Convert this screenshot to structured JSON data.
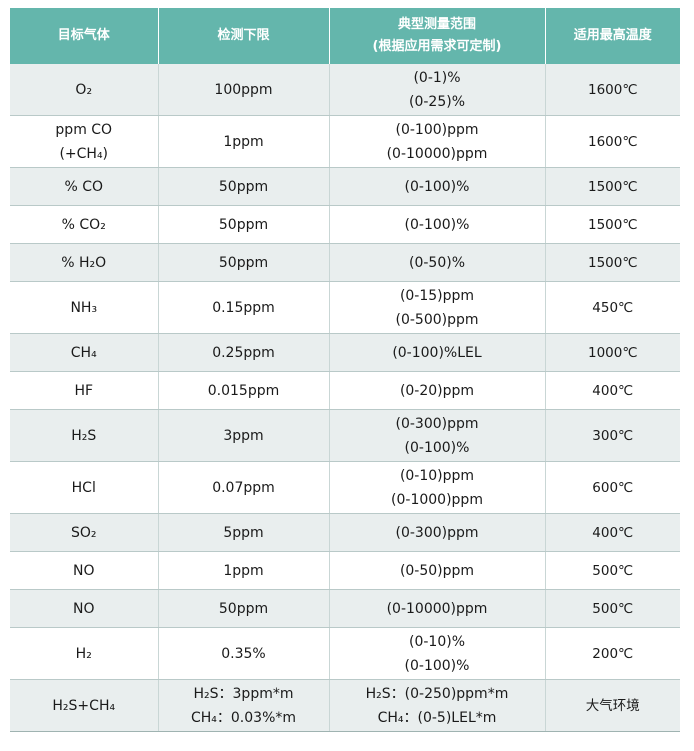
{
  "table": {
    "headers": [
      [
        "目标气体"
      ],
      [
        "检测下限"
      ],
      [
        "典型测量范围",
        "(根据应用需求可定制)"
      ],
      [
        "适用最高温度"
      ]
    ],
    "rows": [
      {
        "gas": "O₂",
        "limit": [
          "100ppm"
        ],
        "range": [
          "(0-1)%",
          "(0-25)%"
        ],
        "temp": "1600℃"
      },
      {
        "gas": "ppm CO (+CH₄)",
        "limit": [
          "1ppm"
        ],
        "range": [
          "(0-100)ppm",
          "(0-10000)ppm"
        ],
        "temp": "1600℃"
      },
      {
        "gas": "% CO",
        "limit": [
          "50ppm"
        ],
        "range": [
          "(0-100)%"
        ],
        "temp": "1500℃"
      },
      {
        "gas": "% CO₂",
        "limit": [
          "50ppm"
        ],
        "range": [
          "(0-100)%"
        ],
        "temp": "1500℃"
      },
      {
        "gas": "% H₂O",
        "limit": [
          "50ppm"
        ],
        "range": [
          "(0-50)%"
        ],
        "temp": "1500℃"
      },
      {
        "gas": "NH₃",
        "limit": [
          "0.15ppm"
        ],
        "range": [
          "(0-15)ppm",
          "(0-500)ppm"
        ],
        "temp": "450℃"
      },
      {
        "gas": "CH₄",
        "limit": [
          "0.25ppm"
        ],
        "range": [
          "(0-100)%LEL"
        ],
        "temp": "1000℃"
      },
      {
        "gas": "HF",
        "limit": [
          "0.015ppm"
        ],
        "range": [
          "(0-20)ppm"
        ],
        "temp": "400℃"
      },
      {
        "gas": "H₂S",
        "limit": [
          "3ppm"
        ],
        "range": [
          "(0-300)ppm",
          "(0-100)%"
        ],
        "temp": "300℃"
      },
      {
        "gas": "HCl",
        "limit": [
          "0.07ppm"
        ],
        "range": [
          "(0-10)ppm",
          "(0-1000)ppm"
        ],
        "temp": "600℃"
      },
      {
        "gas": "SO₂",
        "limit": [
          "5ppm"
        ],
        "range": [
          "(0-300)ppm"
        ],
        "temp": "400℃"
      },
      {
        "gas": "NO",
        "limit": [
          "1ppm"
        ],
        "range": [
          "(0-50)ppm"
        ],
        "temp": "500℃"
      },
      {
        "gas": "NO",
        "limit": [
          "50ppm"
        ],
        "range": [
          "(0-10000)ppm"
        ],
        "temp": "500℃"
      },
      {
        "gas": "H₂",
        "limit": [
          "0.35%"
        ],
        "range": [
          "(0-10)%",
          "(0-100)%"
        ],
        "temp": "200℃"
      },
      {
        "gas": "H₂S+CH₄",
        "limit": [
          "H₂S：3ppm*m",
          "CH₄：0.03%*m"
        ],
        "range": [
          "H₂S：(0-250)ppm*m",
          "CH₄：(0-5)LEL*m"
        ],
        "temp": "大气环境"
      }
    ]
  },
  "colors": {
    "header_bg": "#64b6ac",
    "header_text": "#ffffff",
    "row_shaded": "#e9eeee",
    "row_plain": "#ffffff"
  }
}
